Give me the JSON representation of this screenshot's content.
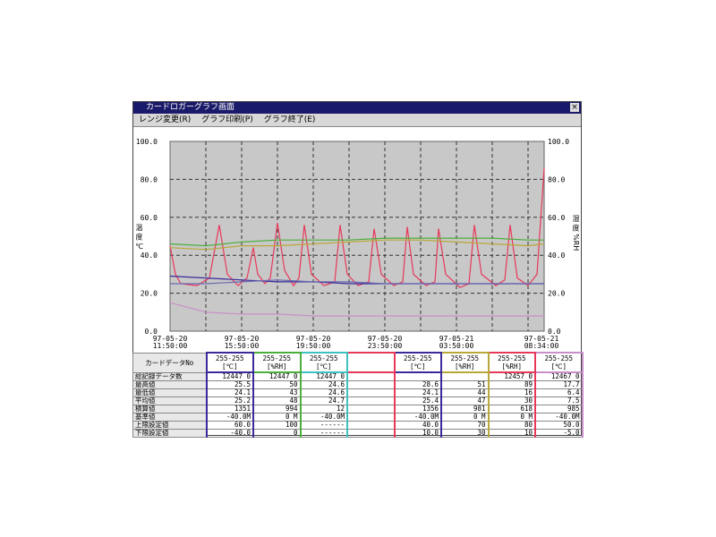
{
  "window": {
    "title": "カードロガーグラフ画面",
    "close": "×"
  },
  "menu": [
    "レンジ変更(R)",
    "グラフ印刷(P)",
    "グラフ終了(E)"
  ],
  "chart": {
    "type": "line",
    "y_label": "温 度 ℃",
    "y2_label": "湿 度 %RH",
    "ylim": [
      0,
      100
    ],
    "yticks": [
      {
        "value": 0,
        "label": "0.0"
      },
      {
        "value": 20,
        "label": "20.0"
      },
      {
        "value": 40,
        "label": "40.0"
      },
      {
        "value": 60,
        "label": "60.0"
      },
      {
        "value": 80,
        "label": "80.0"
      },
      {
        "value": 100,
        "label": "100.0"
      }
    ],
    "y2lim": [
      0,
      100
    ],
    "y2ticks": [
      {
        "value": 0,
        "label": "0.0"
      },
      {
        "value": 20,
        "label": "20.0"
      },
      {
        "value": 40,
        "label": "40.0"
      },
      {
        "value": 60,
        "label": "60.0"
      },
      {
        "value": 80,
        "label": "80.0"
      },
      {
        "value": 100,
        "label": "100.0"
      }
    ],
    "xlim": [
      0,
      20.9
    ],
    "grid": true,
    "background": "#c8c8c8",
    "x_labels": [
      [
        "97-05-20",
        "11:50:00"
      ],
      [
        "97-05-20",
        "15:50:00"
      ],
      [
        "97-05-20",
        "19:50:00"
      ],
      [
        "97-05-20",
        "23:50:00"
      ],
      [
        "97-05-21",
        "03:50:00"
      ],
      [
        "97-05-21",
        "08:34:00"
      ]
    ],
    "series": [
      {
        "color": "#e8385a",
        "x": [
          0,
          0.3,
          0.6,
          1.5,
          2.2,
          2.75,
          3.2,
          3.8,
          4.3,
          4.65,
          4.9,
          5.3,
          5.6,
          6.0,
          6.4,
          6.9,
          7.2,
          7.5,
          7.9,
          8.6,
          9.2,
          9.5,
          9.9,
          10.5,
          11.1,
          11.4,
          11.8,
          12.5,
          13.0,
          13.25,
          13.6,
          14.3,
          14.8,
          15.0,
          15.4,
          16.2,
          16.7,
          17.0,
          17.4,
          18.2,
          18.7,
          19.0,
          19.4,
          20.0,
          20.5,
          20.9
        ],
        "values": [
          45,
          30,
          25,
          24,
          28,
          56,
          30,
          24,
          28,
          44,
          30,
          25,
          28,
          57,
          32,
          24,
          28,
          56,
          30,
          24,
          26,
          56,
          30,
          24,
          26,
          54,
          30,
          24,
          26,
          55,
          30,
          24,
          26,
          54,
          30,
          23,
          25,
          56,
          30,
          24,
          27,
          56,
          28,
          24,
          30,
          86
        ]
      },
      {
        "color": "#4caf3c",
        "x": [
          0,
          2,
          4,
          6,
          8,
          10,
          12,
          14,
          16,
          18,
          20,
          20.9
        ],
        "values": [
          46,
          45,
          47,
          48,
          48,
          48,
          49,
          49,
          49,
          49,
          48,
          48
        ]
      },
      {
        "color": "#b8a83a",
        "x": [
          0,
          2,
          4,
          6,
          8,
          10,
          12,
          14,
          16,
          18,
          20,
          20.9
        ],
        "values": [
          44,
          43,
          45,
          45,
          46,
          47,
          48,
          48,
          47,
          46,
          45,
          46
        ]
      },
      {
        "color": "#3a2a9a",
        "x": [
          0,
          2,
          4,
          6,
          8,
          10,
          12,
          14,
          16,
          18,
          20,
          20.9
        ],
        "values": [
          29,
          28,
          27,
          26,
          26,
          25,
          25,
          25,
          25,
          25,
          25,
          25
        ]
      },
      {
        "color": "#6a6ab0",
        "x": [
          0,
          2,
          4,
          6,
          8,
          10,
          12,
          14,
          16,
          18,
          20,
          20.9
        ],
        "values": [
          25,
          25,
          26,
          27,
          26,
          26,
          25,
          25,
          25,
          25,
          25,
          25
        ]
      },
      {
        "color": "#c890c8",
        "x": [
          0,
          2,
          4,
          6,
          8,
          10,
          12,
          14,
          16,
          18,
          20,
          20.9
        ],
        "values": [
          15,
          10,
          9,
          9,
          8,
          8,
          8,
          8,
          8,
          8,
          8,
          8
        ]
      }
    ]
  },
  "table": {
    "corner": "カードデータNo",
    "row_labels": [
      "総記録データ数",
      "最高値",
      "最低値",
      "平均値",
      "積算値",
      "基準値",
      "上限設定値",
      "下限設定値"
    ],
    "columns": [
      {
        "header": [
          "255-255",
          "[℃]"
        ],
        "border_color": "#3a2a9a",
        "values": [
          "12447 0",
          "25.5",
          "24.1",
          "25.2",
          "1351",
          "-40.0M",
          "60.0",
          "-40.0"
        ]
      },
      {
        "header": [
          "255-255",
          "[%RH]"
        ],
        "border_color": "#4caf3c",
        "values": [
          "12447 0",
          "50",
          "43",
          "48",
          "994",
          "0 M",
          "100",
          "0"
        ]
      },
      {
        "header": [
          "255-255",
          "[℃]"
        ],
        "border_color": "#40c0c0",
        "values": [
          "12447 0",
          "24.6",
          "24.6",
          "24.7",
          "12",
          "-40.0M",
          "------",
          "------"
        ]
      },
      {
        "header": [
          "",
          ""
        ],
        "border_color": "#e8385a",
        "values": [
          "",
          "",
          "",
          "",
          "",
          "",
          "",
          ""
        ]
      },
      {
        "header": [
          "255-255",
          "[℃]"
        ],
        "border_color": "#3a2a9a",
        "values": [
          "",
          "28.6",
          "24.1",
          "25.4",
          "1356",
          "-40.0M",
          "40.0",
          "10.0"
        ]
      },
      {
        "header": [
          "255-255",
          "[%RH]"
        ],
        "border_color": "#b8a83a",
        "values": [
          "",
          "51",
          "44",
          "47",
          "981",
          "0 M",
          "70",
          "30"
        ]
      },
      {
        "header": [
          "255-255",
          "[%RH]"
        ],
        "border_color": "#e8385a",
        "values": [
          "12457 0",
          "89",
          "16",
          "30",
          "618",
          "0 M",
          "80",
          "10"
        ]
      },
      {
        "header": [
          "255-255",
          "[℃]"
        ],
        "border_color": "#c890c8",
        "values": [
          "12467 0",
          "17.7",
          "6.4",
          "7.5",
          "985",
          "-40.0M",
          "50.0",
          "-5.0"
        ]
      }
    ]
  }
}
